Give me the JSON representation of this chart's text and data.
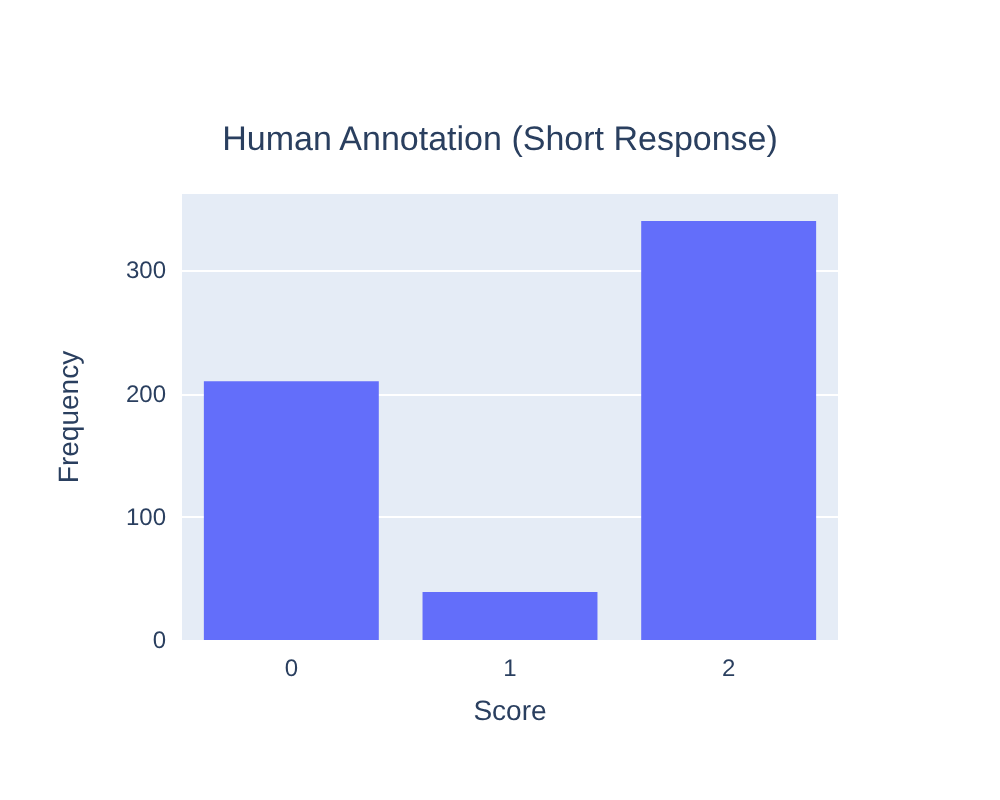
{
  "chart_data": {
    "type": "bar",
    "title": "Human Annotation (Short Response)",
    "xlabel": "Score",
    "ylabel": "Frequency",
    "categories": [
      "0",
      "1",
      "2"
    ],
    "values": [
      210,
      39,
      340
    ],
    "color": "#636efa",
    "ylim": [
      0,
      362
    ],
    "yticks": [
      0,
      100,
      200,
      300
    ],
    "grid": "y"
  }
}
